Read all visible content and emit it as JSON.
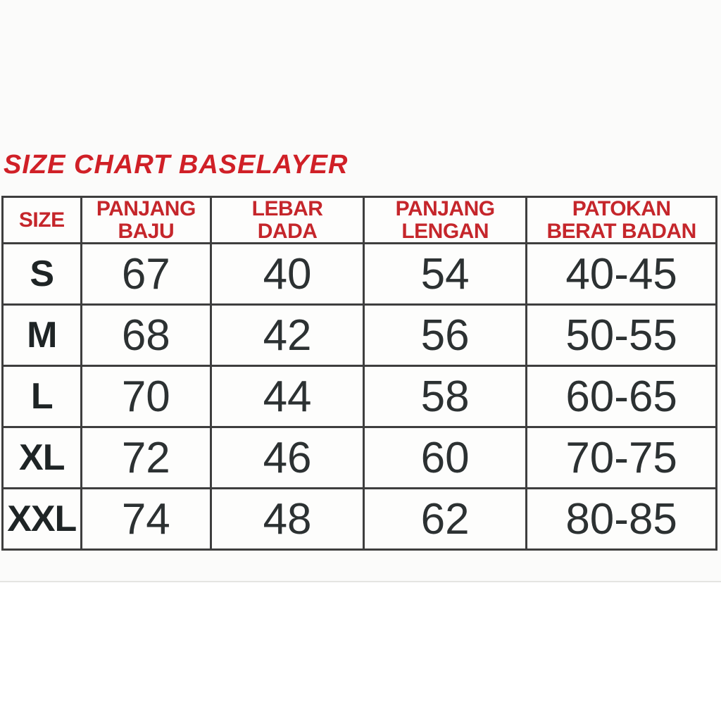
{
  "header": {
    "title": "SIZE CHART BASELAYER"
  },
  "chart_data": {
    "type": "table",
    "title": "SIZE CHART BASELAYER",
    "columns": [
      {
        "key": "size",
        "label_lines": [
          "SIZE"
        ]
      },
      {
        "key": "panjang_baju",
        "label_lines": [
          "PANJANG",
          "BAJU"
        ]
      },
      {
        "key": "lebar_dada",
        "label_lines": [
          "LEBAR",
          "DADA"
        ]
      },
      {
        "key": "panjang_lengan",
        "label_lines": [
          "PANJANG",
          "LENGAN"
        ]
      },
      {
        "key": "patokan_berat_badan",
        "label_lines": [
          "PATOKAN",
          "BERAT BADAN"
        ]
      }
    ],
    "rows": [
      {
        "size": "S",
        "panjang_baju": "67",
        "lebar_dada": "40",
        "panjang_lengan": "54",
        "patokan_berat_badan": "40-45"
      },
      {
        "size": "M",
        "panjang_baju": "68",
        "lebar_dada": "42",
        "panjang_lengan": "56",
        "patokan_berat_badan": "50-55"
      },
      {
        "size": "L",
        "panjang_baju": "70",
        "lebar_dada": "44",
        "panjang_lengan": "58",
        "patokan_berat_badan": "60-65"
      },
      {
        "size": "XL",
        "panjang_baju": "72",
        "lebar_dada": "46",
        "panjang_lengan": "60",
        "patokan_berat_badan": "70-75"
      },
      {
        "size": "XXL",
        "panjang_baju": "74",
        "lebar_dada": "48",
        "panjang_lengan": "62",
        "patokan_berat_badan": "80-85"
      }
    ]
  },
  "colors": {
    "title_red": "#d02027",
    "header_red": "#c5262b",
    "border": "#3e3e3e",
    "cell_text": "#2c3132",
    "cell_dark": "#1e2425",
    "photo_bg": "#fbfbfa",
    "edge_line": "#e4e4e2"
  }
}
